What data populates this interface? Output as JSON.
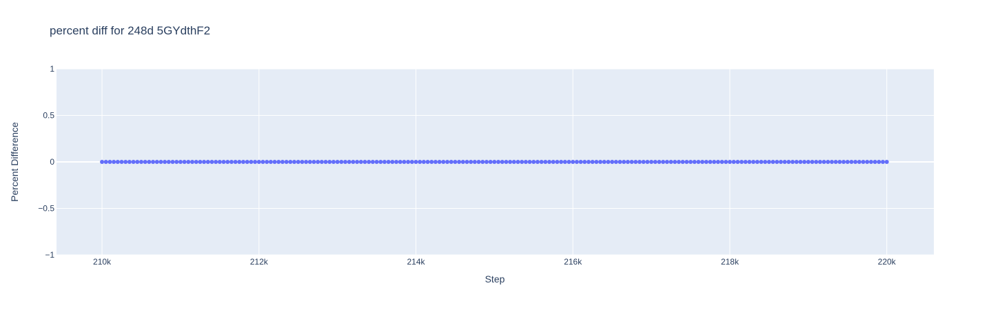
{
  "chart_data": {
    "type": "scatter",
    "title": "percent diff for 248d 5GYdthF2",
    "xlabel": "Step",
    "ylabel": "Percent Difference",
    "xlim": [
      209420,
      220600
    ],
    "ylim": [
      -1,
      1
    ],
    "x_ticks": [
      210000,
      212000,
      214000,
      216000,
      218000,
      220000
    ],
    "x_tick_labels": [
      "210k",
      "212k",
      "214k",
      "216k",
      "218k",
      "220k"
    ],
    "y_ticks": [
      1,
      0.5,
      0,
      -0.5,
      -1
    ],
    "y_tick_labels": [
      "1",
      "0.5",
      "0",
      "−0.5",
      "−1"
    ],
    "grid": true,
    "plot_bg": "#e5ecf6",
    "grid_color": "#ffffff",
    "series": [
      {
        "color": "#636efa",
        "x_start": 210000,
        "x_end": 220000,
        "x_step": 50,
        "y_value": 0
      }
    ]
  }
}
